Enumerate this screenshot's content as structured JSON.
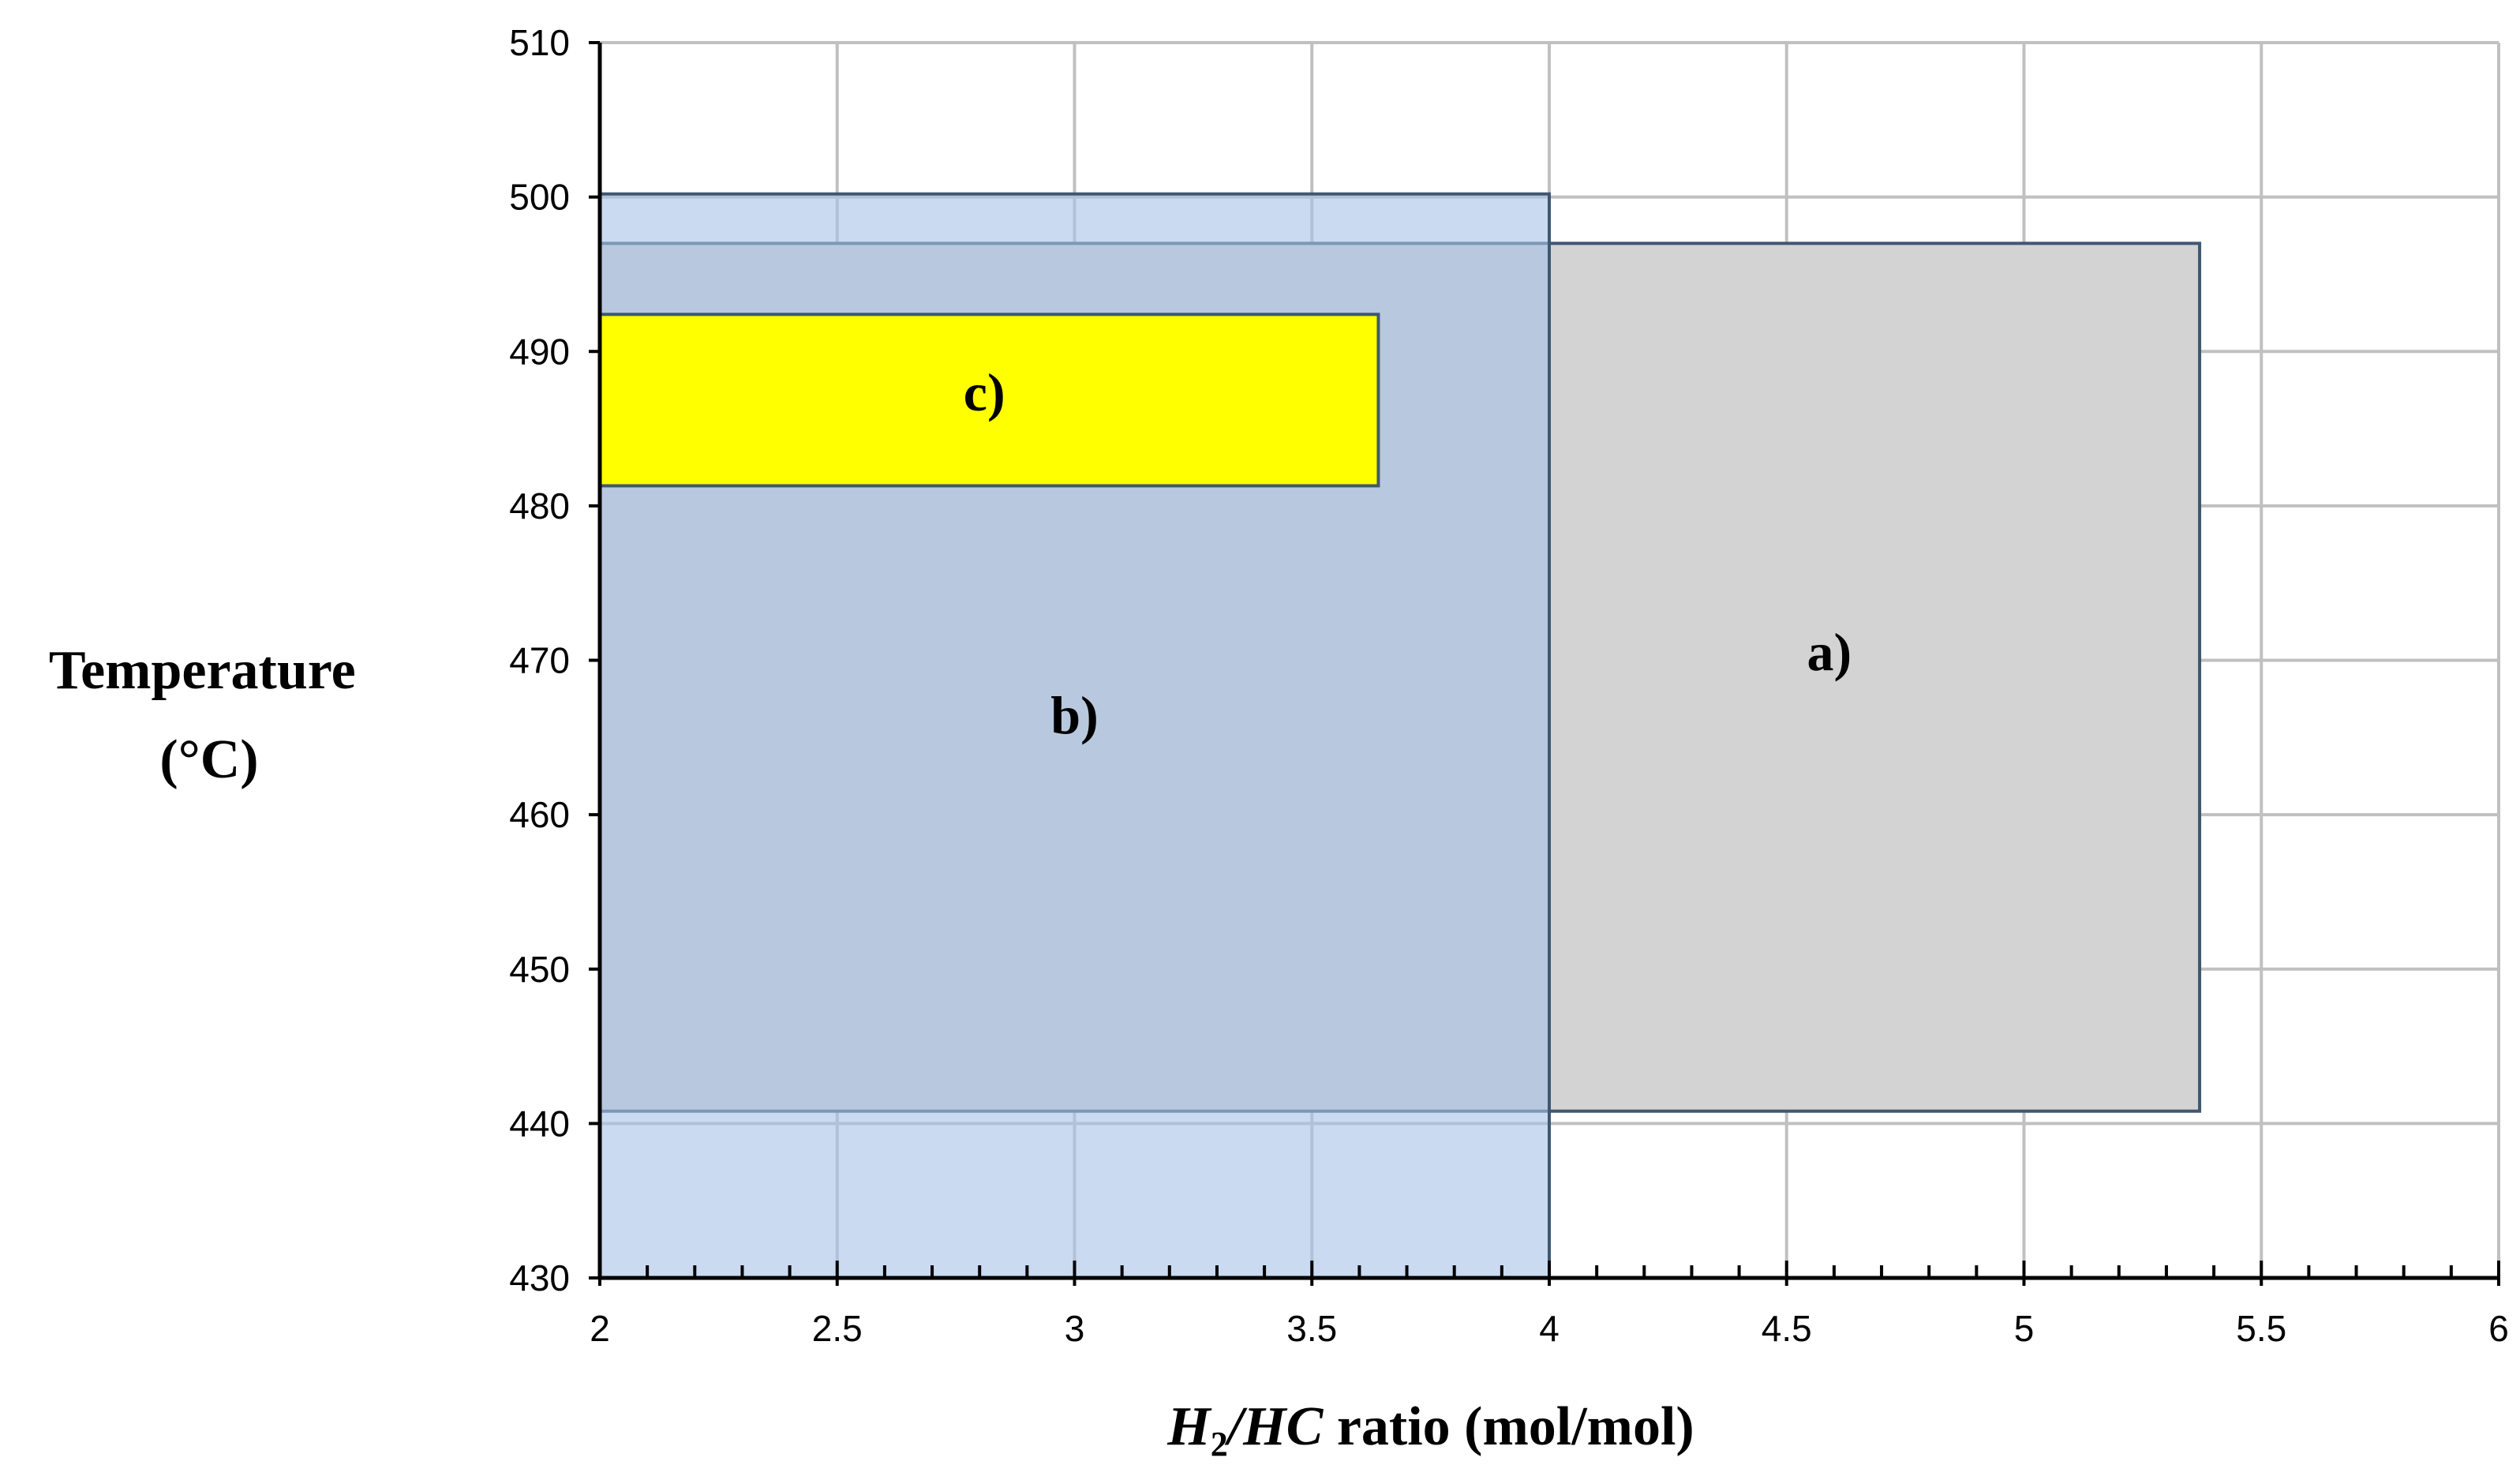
{
  "chart_data": {
    "type": "area",
    "xlabel": {
      "h": "H",
      "sub": "2",
      "rest_italic": "/HC",
      "rest": " ratio (mol/mol)"
    },
    "ylabel_lines": [
      "Temperature",
      "(°C)"
    ],
    "xlim": [
      2,
      6
    ],
    "ylim": [
      430,
      510
    ],
    "x_ticks": [
      2,
      2.5,
      3,
      3.5,
      4,
      4.5,
      5,
      5.5,
      6
    ],
    "x_tick_labels": [
      "2",
      "2.5",
      "3",
      "3.5",
      "4",
      "4.5",
      "5",
      "5.5",
      "6"
    ],
    "y_ticks": [
      430,
      440,
      450,
      460,
      470,
      480,
      490,
      500,
      510
    ],
    "y_tick_labels": [
      "430",
      "440",
      "450",
      "460",
      "470",
      "480",
      "490",
      "500",
      "510"
    ],
    "x_minor_step": 0.1,
    "grid": true,
    "regions": [
      {
        "label": "a)",
        "x": [
          2,
          5.37
        ],
        "y": [
          440.8,
          497
        ],
        "fill": "#d3d3d3",
        "opacity": 1,
        "stroke": "#3f5772",
        "label_at": [
          4.59,
          470.6
        ]
      },
      {
        "label": "b)",
        "x": [
          2,
          4
        ],
        "y": [
          430,
          500.2
        ],
        "fill": "#a7c1e8",
        "opacity": 0.6,
        "stroke": "#3f5772",
        "label_at": [
          3,
          466.5
        ]
      },
      {
        "label": "c)",
        "x": [
          2,
          3.64
        ],
        "y": [
          481.3,
          492.4
        ],
        "fill": "#ffff00",
        "opacity": 1,
        "stroke": "#3f5772",
        "label_at": [
          2.81,
          487.4
        ]
      }
    ],
    "colors": {
      "grid": "#c0c0c0",
      "axis": "#000000"
    }
  }
}
